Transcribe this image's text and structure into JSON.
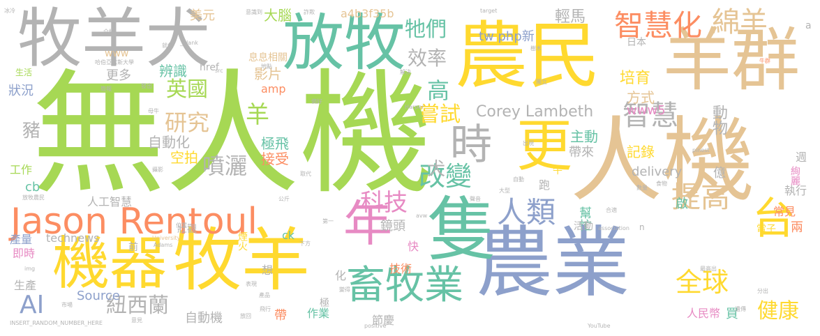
{
  "colors": {
    "green": "#a6d854",
    "gray": "#b3b3b3",
    "yellow": "#ffd92f",
    "tan": "#e5c494",
    "teal": "#66c2a5",
    "blue": "#8da0cb",
    "orange": "#fc8d62",
    "pink": "#e78ac3"
  },
  "words": [
    {
      "text": "無人機",
      "color": "green"
    },
    {
      "text": "人機",
      "color": "tan"
    },
    {
      "text": "農業",
      "color": "blue"
    },
    {
      "text": "農民",
      "color": "yellow"
    },
    {
      "text": "牧羊犬",
      "color": "gray"
    },
    {
      "text": "羊群",
      "color": "tan"
    },
    {
      "text": "放牧",
      "color": "teal"
    },
    {
      "text": "機器",
      "color": "yellow"
    },
    {
      "text": "牧羊",
      "color": "yellow"
    },
    {
      "text": "Jason Rentoul",
      "color": "orange"
    },
    {
      "text": "隻",
      "color": "teal"
    },
    {
      "text": "年",
      "color": "pink"
    },
    {
      "text": "更",
      "color": "yellow"
    },
    {
      "text": "時",
      "color": "gray"
    },
    {
      "text": "畜牧業",
      "color": "teal"
    },
    {
      "text": "智慧化",
      "color": "orange"
    },
    {
      "text": "綿羊",
      "color": "tan"
    },
    {
      "text": "台",
      "color": "yellow"
    },
    {
      "text": "提高",
      "color": "tan"
    },
    {
      "text": "全球",
      "color": "yellow"
    },
    {
      "text": "人類",
      "color": "blue"
    },
    {
      "text": "智慧",
      "color": "gray"
    },
    {
      "text": "改變",
      "color": "teal"
    },
    {
      "text": "科技",
      "color": "pink"
    },
    {
      "text": "英國",
      "color": "green"
    },
    {
      "text": "研究",
      "color": "tan"
    },
    {
      "text": "噴灑",
      "color": "gray"
    },
    {
      "text": "紐西蘭",
      "color": "gray"
    },
    {
      "text": "健康",
      "color": "yellow"
    },
    {
      "text": "AI",
      "color": "blue"
    },
    {
      "text": "牠們",
      "color": "teal"
    },
    {
      "text": "效率",
      "color": "gray"
    },
    {
      "text": "嘗試",
      "color": "yellow"
    },
    {
      "text": "Corey Lambeth",
      "color": "gray"
    },
    {
      "text": "輕馬",
      "color": "gray"
    },
    {
      "text": "培育",
      "color": "yellow"
    },
    {
      "text": "方式",
      "color": "tan"
    },
    {
      "text": "動物",
      "color": "gray"
    },
    {
      "text": "羊",
      "color": "green"
    },
    {
      "text": "高",
      "color": "teal"
    },
    {
      "text": "犬",
      "color": "gray"
    },
    {
      "text": "豬",
      "color": "gray"
    },
    {
      "text": "自動化",
      "color": "gray"
    },
    {
      "text": "空拍",
      "color": "yellow"
    },
    {
      "text": "極飛",
      "color": "teal"
    },
    {
      "text": "接受",
      "color": "orange"
    },
    {
      "text": "主動",
      "color": "teal"
    },
    {
      "text": "記錄",
      "color": "yellow"
    },
    {
      "text": "帶來",
      "color": "gray"
    },
    {
      "text": "delivery",
      "color": "gray"
    },
    {
      "text": "www5",
      "color": "pink"
    },
    {
      "text": "大腦",
      "color": "green"
    },
    {
      "text": "美元",
      "color": "tan"
    },
    {
      "text": "a4b3f35b",
      "color": "tan"
    },
    {
      "text": "www",
      "color": "tan"
    },
    {
      "text": "更多",
      "color": "gray"
    },
    {
      "text": "辨識",
      "color": "teal"
    },
    {
      "text": "影片",
      "color": "tan"
    },
    {
      "text": "息息相關",
      "color": "tan"
    },
    {
      "text": "tw php新",
      "color": "blue"
    },
    {
      "text": "amp",
      "color": "orange"
    },
    {
      "text": "href",
      "color": "gray"
    },
    {
      "text": "日本",
      "color": "gray"
    },
    {
      "text": "狀況",
      "color": "blue"
    },
    {
      "text": "生活",
      "color": "green"
    },
    {
      "text": "工作",
      "color": "green"
    },
    {
      "text": "cb",
      "color": "teal"
    },
    {
      "text": "人工智慧",
      "color": "gray"
    },
    {
      "text": "產量",
      "color": "blue"
    },
    {
      "text": "即時",
      "color": "pink"
    },
    {
      "text": "technews",
      "color": "gray"
    },
    {
      "text": "生產",
      "color": "gray"
    },
    {
      "text": "Source",
      "color": "blue"
    },
    {
      "text": "自動機",
      "color": "gray"
    },
    {
      "text": "作業",
      "color": "teal"
    },
    {
      "text": "節慶",
      "color": "gray"
    },
    {
      "text": "技術",
      "color": "orange"
    },
    {
      "text": "鏡頭",
      "color": "gray"
    },
    {
      "text": "幫忙",
      "color": "teal"
    },
    {
      "text": "活動",
      "color": "gray"
    },
    {
      "text": "執行",
      "color": "gray"
    },
    {
      "text": "啟",
      "color": "teal"
    },
    {
      "text": "常見",
      "color": "orange"
    },
    {
      "text": "電子",
      "color": "yellow"
    },
    {
      "text": "兩",
      "color": "orange"
    },
    {
      "text": "人民幣",
      "color": "pink"
    },
    {
      "text": "買",
      "color": "teal"
    },
    {
      "text": "億",
      "color": "gray"
    },
    {
      "text": "週",
      "color": "gray"
    },
    {
      "text": "絢麗",
      "color": "pink"
    },
    {
      "text": "ck",
      "color": "teal"
    },
    {
      "text": "壯觀",
      "color": "gray"
    },
    {
      "text": "煙火",
      "color": "yellow"
    },
    {
      "text": "想",
      "color": "gray"
    },
    {
      "text": "化",
      "color": "gray"
    },
    {
      "text": "極",
      "color": "gray"
    },
    {
      "text": "帶",
      "color": "orange"
    },
    {
      "text": "快",
      "color": "pink"
    },
    {
      "text": "前",
      "color": "gray"
    },
    {
      "text": "跑",
      "color": "gray"
    },
    {
      "text": "牛",
      "color": "yellow"
    },
    {
      "text": "n",
      "color": "gray"
    },
    {
      "text": "positive",
      "color": "gray"
    },
    {
      "text": "YouTube",
      "color": "gray"
    },
    {
      "text": "INSERT_RANDOM_NUMBER_HERE",
      "color": "gray"
    },
    {
      "text": "target",
      "color": "gray"
    },
    {
      "text": "src",
      "color": "gray"
    },
    {
      "text": "avw",
      "color": "gray"
    },
    {
      "text": "Harper",
      "color": "gray"
    },
    {
      "text": "University",
      "color": "tan"
    },
    {
      "text": "Adams",
      "color": "gray"
    },
    {
      "text": "association",
      "color": "gray"
    },
    {
      "text": "pinest",
      "color": "gray"
    },
    {
      "text": "_blank",
      "color": "gray"
    },
    {
      "text": "a",
      "color": "gray"
    },
    {
      "text": "img",
      "color": "gray"
    },
    {
      "text": "冰冷",
      "color": "gray"
    },
    {
      "text": "意識到",
      "color": "gray"
    },
    {
      "text": "詐欺",
      "color": "gray"
    },
    {
      "text": "哈伯亞當斯大學",
      "color": "gray"
    },
    {
      "text": "牛群",
      "color": "orange"
    },
    {
      "text": "下方",
      "color": "gray"
    },
    {
      "text": "公斤",
      "color": "gray"
    },
    {
      "text": "市場",
      "color": "gray"
    },
    {
      "text": "放牧農民",
      "color": "gray"
    },
    {
      "text": "意見",
      "color": "gray"
    },
    {
      "text": "放回",
      "color": "gray"
    },
    {
      "text": "飛行",
      "color": "gray"
    },
    {
      "text": "產品",
      "color": "gray"
    },
    {
      "text": "表現",
      "color": "gray"
    },
    {
      "text": "變得",
      "color": "gray"
    },
    {
      "text": "第一",
      "color": "gray"
    },
    {
      "text": "聲音",
      "color": "gray"
    },
    {
      "text": "合適",
      "color": "gray"
    },
    {
      "text": "分出",
      "color": "gray"
    },
    {
      "text": "最高出",
      "color": "gray"
    },
    {
      "text": "食物",
      "color": "gray"
    },
    {
      "text": "遺傳",
      "color": "gray"
    },
    {
      "text": "數量",
      "color": "gray"
    },
    {
      "text": "自動",
      "color": "gray"
    },
    {
      "text": "取代",
      "color": "gray"
    },
    {
      "text": "發出",
      "color": "gray"
    },
    {
      "text": "大型",
      "color": "gray"
    },
    {
      "text": "簡報",
      "color": "gray"
    },
    {
      "text": "母牛",
      "color": "gray"
    },
    {
      "text": "位置",
      "color": "gray"
    },
    {
      "text": "偏好",
      "color": "gray"
    },
    {
      "text": "攝影",
      "color": "gray"
    },
    {
      "text": "樹木",
      "color": "gray"
    },
    {
      "text": "解決",
      "color": "gray"
    },
    {
      "text": "獨立",
      "color": "gray"
    },
    {
      "text": "出現",
      "color": "gray"
    },
    {
      "text": "地點",
      "color": "gray"
    },
    {
      "text": "就任",
      "color": "gray"
    },
    {
      "text": "介紹",
      "color": "gray"
    },
    {
      "text": "缺點",
      "color": "gray"
    }
  ]
}
